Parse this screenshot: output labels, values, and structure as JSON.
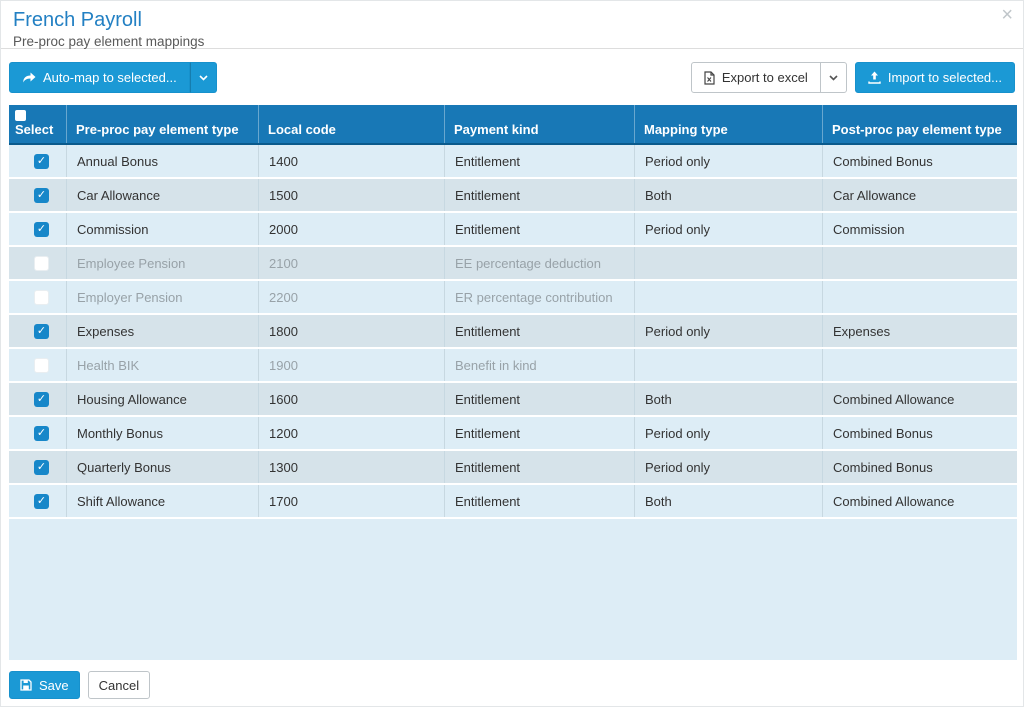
{
  "modal": {
    "title": "French Payroll",
    "subtitle": "Pre-proc pay element mappings",
    "close_glyph": "×"
  },
  "toolbar": {
    "automap_label": "Auto-map to selected...",
    "export_label": "Export to excel",
    "import_label": "Import to selected..."
  },
  "table": {
    "columns": [
      "Select",
      "Pre-proc pay element type",
      "Local code",
      "Payment kind",
      "Mapping type",
      "Post-proc pay element type"
    ],
    "select_all_checked": false,
    "rows": [
      {
        "selected": true,
        "disabled": false,
        "pre_proc": "Annual Bonus",
        "local_code": "1400",
        "payment_kind": "Entitlement",
        "mapping_type": "Period only",
        "post_proc": "Combined Bonus"
      },
      {
        "selected": true,
        "disabled": false,
        "pre_proc": "Car Allowance",
        "local_code": "1500",
        "payment_kind": "Entitlement",
        "mapping_type": "Both",
        "post_proc": "Car Allowance"
      },
      {
        "selected": true,
        "disabled": false,
        "pre_proc": "Commission",
        "local_code": "2000",
        "payment_kind": "Entitlement",
        "mapping_type": "Period only",
        "post_proc": "Commission"
      },
      {
        "selected": false,
        "disabled": true,
        "pre_proc": "Employee Pension",
        "local_code": "2100",
        "payment_kind": "EE percentage deduction",
        "mapping_type": "",
        "post_proc": ""
      },
      {
        "selected": false,
        "disabled": true,
        "pre_proc": "Employer Pension",
        "local_code": "2200",
        "payment_kind": "ER percentage contribution",
        "mapping_type": "",
        "post_proc": ""
      },
      {
        "selected": true,
        "disabled": false,
        "pre_proc": "Expenses",
        "local_code": "1800",
        "payment_kind": "Entitlement",
        "mapping_type": "Period only",
        "post_proc": "Expenses"
      },
      {
        "selected": false,
        "disabled": true,
        "pre_proc": "Health BIK",
        "local_code": "1900",
        "payment_kind": "Benefit in kind",
        "mapping_type": "",
        "post_proc": ""
      },
      {
        "selected": true,
        "disabled": false,
        "pre_proc": "Housing Allowance",
        "local_code": "1600",
        "payment_kind": "Entitlement",
        "mapping_type": "Both",
        "post_proc": "Combined Allowance"
      },
      {
        "selected": true,
        "disabled": false,
        "pre_proc": "Monthly Bonus",
        "local_code": "1200",
        "payment_kind": "Entitlement",
        "mapping_type": "Period only",
        "post_proc": "Combined Bonus"
      },
      {
        "selected": true,
        "disabled": false,
        "pre_proc": "Quarterly Bonus",
        "local_code": "1300",
        "payment_kind": "Entitlement",
        "mapping_type": "Period only",
        "post_proc": "Combined Bonus"
      },
      {
        "selected": true,
        "disabled": false,
        "pre_proc": "Shift Allowance",
        "local_code": "1700",
        "payment_kind": "Entitlement",
        "mapping_type": "Both",
        "post_proc": "Combined Allowance"
      }
    ]
  },
  "footer": {
    "save_label": "Save",
    "cancel_label": "Cancel"
  },
  "colors": {
    "accent_blue": "#1b99d5",
    "table_header_blue": "#1878b6",
    "title_blue": "#2380c3",
    "row_odd": "#ddedf6",
    "row_even": "#d6e3ea",
    "checkbox_blue": "#1787c9",
    "disabled_text": "#98a2a8"
  }
}
